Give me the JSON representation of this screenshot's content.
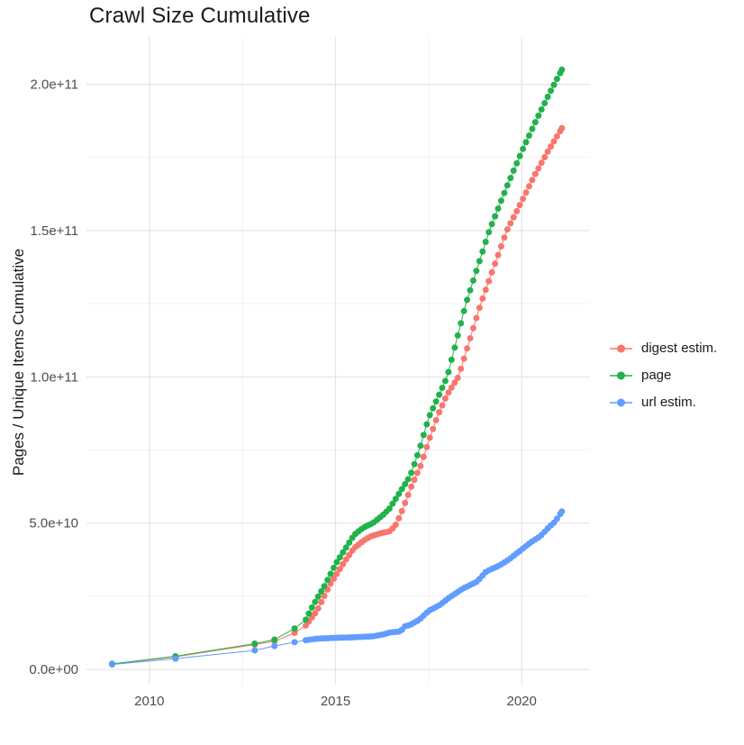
{
  "title": "Crawl Size Cumulative",
  "chart_data": {
    "type": "scatter",
    "title": "Crawl Size Cumulative",
    "xlabel": "",
    "ylabel": "Pages / Unique Items Cumulative",
    "grid": true,
    "legend_position": "right",
    "x_axis": {
      "range": [
        2008.31,
        2021.81
      ],
      "ticks": [
        {
          "value": 2010,
          "label": "2010"
        },
        {
          "value": 2015,
          "label": "2015"
        },
        {
          "value": 2020,
          "label": "2020"
        }
      ],
      "minor_ticks": [
        2012.5,
        2017.5
      ]
    },
    "y_axis": {
      "range": [
        -5200000000.0,
        216200000000.0
      ],
      "ticks": [
        {
          "value": 0,
          "label": "0.0e+00"
        },
        {
          "value": 50000000000.0,
          "label": "5.0e+10"
        },
        {
          "value": 100000000000.0,
          "label": "1.0e+11"
        },
        {
          "value": 150000000000.0,
          "label": "1.5e+11"
        },
        {
          "value": 200000000000.0,
          "label": "2.0e+11"
        }
      ],
      "minor_ticks": [
        25000000000.0,
        75000000000.0,
        125000000000.0,
        175000000000.0
      ]
    },
    "dense_points_from": 2014.2,
    "point_interval_years": 0.08333,
    "series": [
      {
        "name": "digest estim.",
        "color": "#F8766D",
        "points": [
          [
            2009.0,
            1800000000.0
          ],
          [
            2010.7,
            4300000000.0
          ],
          [
            2012.83,
            8500000000.0
          ],
          [
            2013.36,
            9600000000.0
          ],
          [
            2013.9,
            12500000000.0
          ],
          [
            2014.2,
            15000000000.0
          ],
          [
            2014.5,
            20000000000.0
          ],
          [
            2014.85,
            29000000000.0
          ],
          [
            2015.0,
            32000000000.0
          ],
          [
            2015.25,
            37000000000.0
          ],
          [
            2015.5,
            41500000000.0
          ],
          [
            2015.75,
            44000000000.0
          ],
          [
            2015.95,
            45500000000.0
          ],
          [
            2016.2,
            46500000000.0
          ],
          [
            2016.45,
            47200000000.0
          ],
          [
            2016.6,
            49000000000.0
          ],
          [
            2016.75,
            53000000000.0
          ],
          [
            2016.9,
            58000000000.0
          ],
          [
            2017.05,
            63000000000.0
          ],
          [
            2017.3,
            70000000000.0
          ],
          [
            2017.5,
            78000000000.0
          ],
          [
            2017.75,
            87000000000.0
          ],
          [
            2018.0,
            94000000000.0
          ],
          [
            2018.3,
            100000000000.0
          ],
          [
            2018.9,
            125000000000.0
          ],
          [
            2019.6,
            150000000000.0
          ],
          [
            2020.0,
            160000000000.0
          ],
          [
            2020.35,
            169000000000.0
          ],
          [
            2020.7,
            177000000000.0
          ],
          [
            2021.08,
            185000000000.0
          ]
        ]
      },
      {
        "name": "page",
        "color": "#21B24B",
        "points": [
          [
            2009.0,
            1900000000.0
          ],
          [
            2010.7,
            4500000000.0
          ],
          [
            2012.83,
            8800000000.0
          ],
          [
            2013.36,
            10200000000.0
          ],
          [
            2013.9,
            14000000000.0
          ],
          [
            2014.2,
            17000000000.0
          ],
          [
            2014.4,
            22000000000.0
          ],
          [
            2014.7,
            28500000000.0
          ],
          [
            2015.0,
            36000000000.0
          ],
          [
            2015.25,
            41000000000.0
          ],
          [
            2015.5,
            46000000000.0
          ],
          [
            2015.75,
            48500000000.0
          ],
          [
            2016.0,
            50000000000.0
          ],
          [
            2016.25,
            52500000000.0
          ],
          [
            2016.45,
            55000000000.0
          ],
          [
            2016.65,
            59000000000.0
          ],
          [
            2016.85,
            63000000000.0
          ],
          [
            2017.0,
            66000000000.0
          ],
          [
            2017.25,
            75000000000.0
          ],
          [
            2017.5,
            86000000000.0
          ],
          [
            2017.75,
            93000000000.0
          ],
          [
            2018.0,
            100000000000.0
          ],
          [
            2018.5,
            125000000000.0
          ],
          [
            2019.13,
            150000000000.0
          ],
          [
            2019.6,
            165000000000.0
          ],
          [
            2020.0,
            177000000000.0
          ],
          [
            2020.4,
            188000000000.0
          ],
          [
            2020.75,
            197000000000.0
          ],
          [
            2021.08,
            205000000000.0
          ]
        ]
      },
      {
        "name": "url estim.",
        "color": "#619CFF",
        "points": [
          [
            2009.0,
            1700000000.0
          ],
          [
            2010.7,
            3700000000.0
          ],
          [
            2012.83,
            6500000000.0
          ],
          [
            2013.36,
            8000000000.0
          ],
          [
            2013.9,
            9300000000.0
          ],
          [
            2014.2,
            10000000000.0
          ],
          [
            2014.5,
            10500000000.0
          ],
          [
            2015.0,
            10800000000.0
          ],
          [
            2015.5,
            11000000000.0
          ],
          [
            2016.0,
            11300000000.0
          ],
          [
            2016.3,
            12000000000.0
          ],
          [
            2016.45,
            12600000000.0
          ],
          [
            2016.75,
            13000000000.0
          ],
          [
            2016.85,
            14700000000.0
          ],
          [
            2017.0,
            15200000000.0
          ],
          [
            2017.25,
            17000000000.0
          ],
          [
            2017.5,
            20000000000.0
          ],
          [
            2017.8,
            22000000000.0
          ],
          [
            2018.05,
            24500000000.0
          ],
          [
            2018.4,
            27500000000.0
          ],
          [
            2018.8,
            30000000000.0
          ],
          [
            2019.05,
            33500000000.0
          ],
          [
            2019.4,
            35500000000.0
          ],
          [
            2019.65,
            37500000000.0
          ],
          [
            2019.9,
            40000000000.0
          ],
          [
            2020.0,
            41000000000.0
          ],
          [
            2020.25,
            43500000000.0
          ],
          [
            2020.5,
            45500000000.0
          ],
          [
            2020.72,
            48500000000.0
          ],
          [
            2020.9,
            50500000000.0
          ],
          [
            2021.0,
            52500000000.0
          ],
          [
            2021.08,
            54000000000.0
          ]
        ]
      }
    ],
    "style": {
      "grid_major_color": "#E5E5E5",
      "grid_minor_color": "#F2F2F2",
      "background": "#FFFFFF",
      "point_radius": 3.5
    }
  },
  "legend": {
    "items": [
      {
        "label": "digest estim.",
        "color": "#F8766D"
      },
      {
        "label": "page",
        "color": "#21B24B"
      },
      {
        "label": "url estim.",
        "color": "#619CFF"
      }
    ]
  }
}
